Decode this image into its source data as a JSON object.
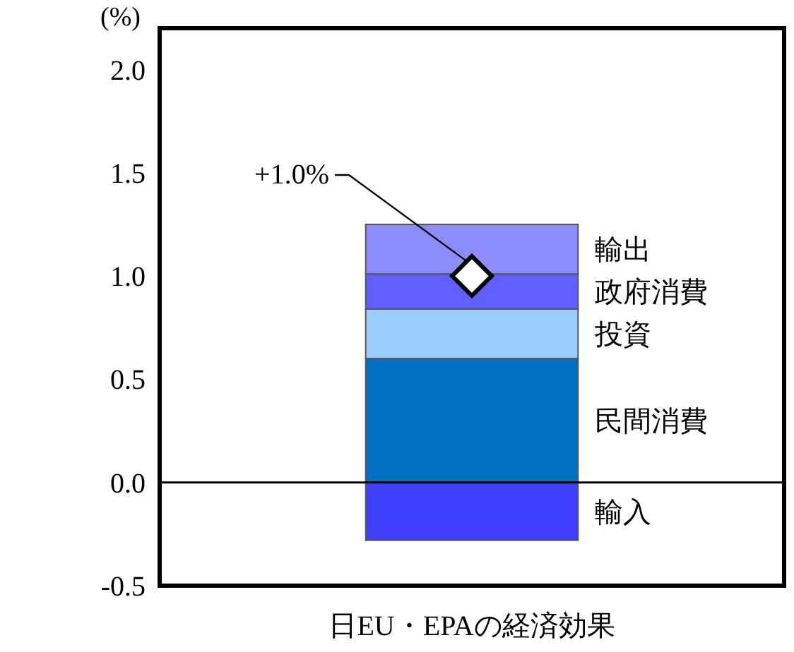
{
  "chart_data": {
    "type": "bar",
    "stacked": true,
    "categories": [
      "日EU・EPAの経済効果"
    ],
    "ylabel": "(%)",
    "ylim": [
      -0.5,
      2.2
    ],
    "yticks": [
      {
        "value": -0.5,
        "label": "-0.5"
      },
      {
        "value": 0,
        "label": "0.0"
      },
      {
        "value": 0.5,
        "label": "0.5"
      },
      {
        "value": 1,
        "label": "1.0"
      },
      {
        "value": 1.5,
        "label": "1.5"
      },
      {
        "value": 2,
        "label": "2.0"
      }
    ],
    "grid": false,
    "legend": false,
    "series": [
      {
        "name": "民間消費",
        "color": "#0070c0",
        "values": [
          0.6
        ]
      },
      {
        "name": "投資",
        "color": "#99ccff",
        "values": [
          0.24
        ]
      },
      {
        "name": "政府消費",
        "color": "#6060ff",
        "values": [
          0.17
        ]
      },
      {
        "name": "輸出",
        "color": "#8c8cff",
        "values": [
          0.24
        ]
      },
      {
        "name": "輸入",
        "color": "#4040ff",
        "values": [
          -0.28
        ]
      },
      {
        "type": "scatter",
        "marker": "diamond",
        "color": "#ffffff",
        "values": [
          1.0
        ]
      }
    ],
    "ref_lines": [
      {
        "axis": "y",
        "value": 0,
        "color": "#000000"
      }
    ],
    "annotations": [
      "+1.0%"
    ]
  }
}
